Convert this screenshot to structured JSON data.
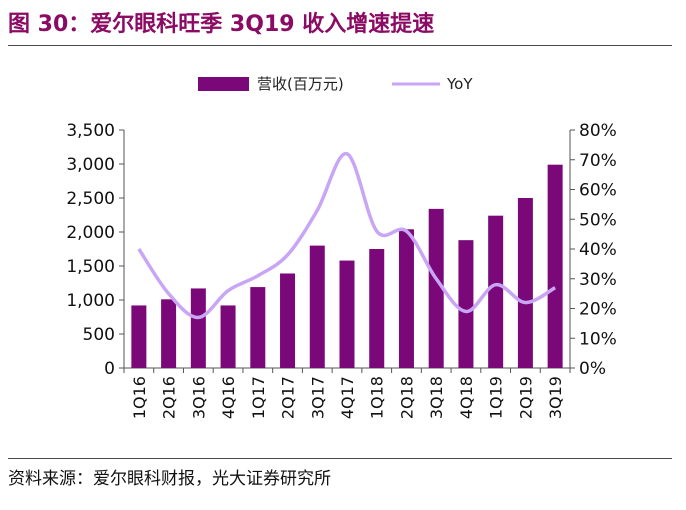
{
  "figure_title": "图 30：爱尔眼科旺季 3Q19 收入增速提速",
  "source": "资料来源：爱尔眼科财报，光大证券研究所",
  "colors": {
    "bar": "#7B0878",
    "line": "#C9A6F5",
    "title": "#8B0A63",
    "axis": "#555555"
  },
  "chart_data": {
    "type": "bar",
    "categories": [
      "1Q16",
      "2Q16",
      "3Q16",
      "4Q16",
      "1Q17",
      "2Q17",
      "3Q17",
      "4Q17",
      "1Q18",
      "2Q18",
      "3Q18",
      "4Q18",
      "1Q19",
      "2Q19",
      "3Q19"
    ],
    "series": [
      {
        "name": "营收(百万元)",
        "type": "bar",
        "axis": "left",
        "values": [
          920,
          1010,
          1170,
          920,
          1190,
          1390,
          1800,
          1580,
          1750,
          2040,
          2340,
          1880,
          2240,
          2500,
          2990
        ]
      },
      {
        "name": "YoY",
        "type": "line",
        "axis": "right",
        "values": [
          0.4,
          0.25,
          0.17,
          0.26,
          0.31,
          0.38,
          0.53,
          0.72,
          0.46,
          0.46,
          0.3,
          0.19,
          0.28,
          0.22,
          0.27
        ]
      }
    ],
    "y_left": {
      "min": 0,
      "max": 3500,
      "step": 500,
      "ticks": [
        "0",
        "500",
        "1,000",
        "1,500",
        "2,000",
        "2,500",
        "3,000",
        "3,500"
      ]
    },
    "y_right": {
      "min": 0,
      "max": 0.8,
      "step": 0.1,
      "ticks": [
        "0%",
        "10%",
        "20%",
        "30%",
        "40%",
        "50%",
        "60%",
        "70%",
        "80%"
      ]
    },
    "legend_position": "top",
    "grid": false
  }
}
